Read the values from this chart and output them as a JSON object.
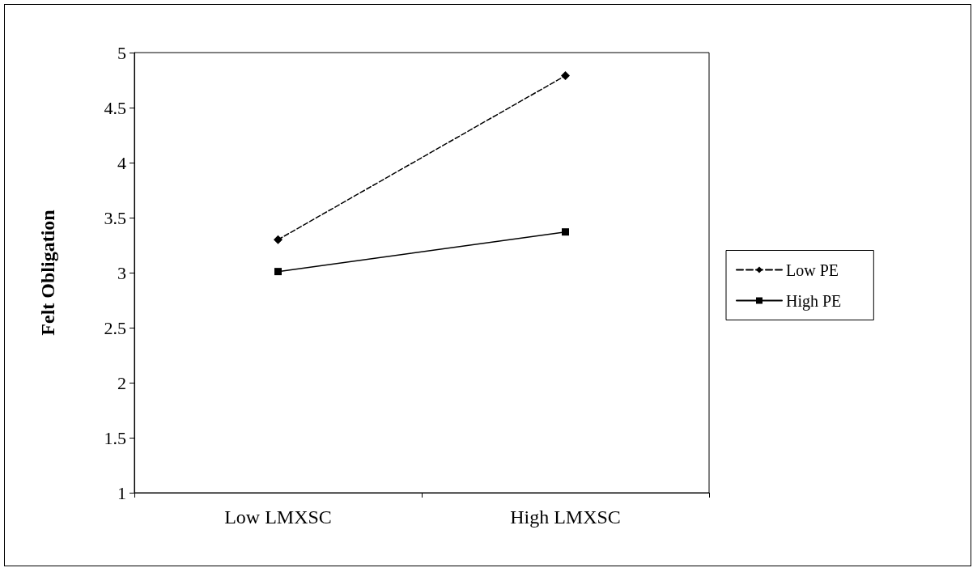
{
  "chart_data": {
    "type": "line",
    "ylabel": "Felt Obligation",
    "categories": [
      "Low LMXSC",
      "High LMXSC"
    ],
    "series": [
      {
        "name": "Low PE",
        "color": "#000000",
        "values": [
          3.3,
          4.79
        ],
        "marker": "diamond",
        "line_style": "dashed"
      },
      {
        "name": "High PE",
        "color": "#000000",
        "values": [
          3.01,
          3.37
        ],
        "marker": "square",
        "line_style": "solid"
      }
    ],
    "ylim": [
      1,
      5
    ],
    "yticks": [
      1,
      1.5,
      2,
      2.5,
      3,
      3.5,
      4,
      4.5,
      5
    ],
    "grid": false,
    "legend": "right"
  }
}
